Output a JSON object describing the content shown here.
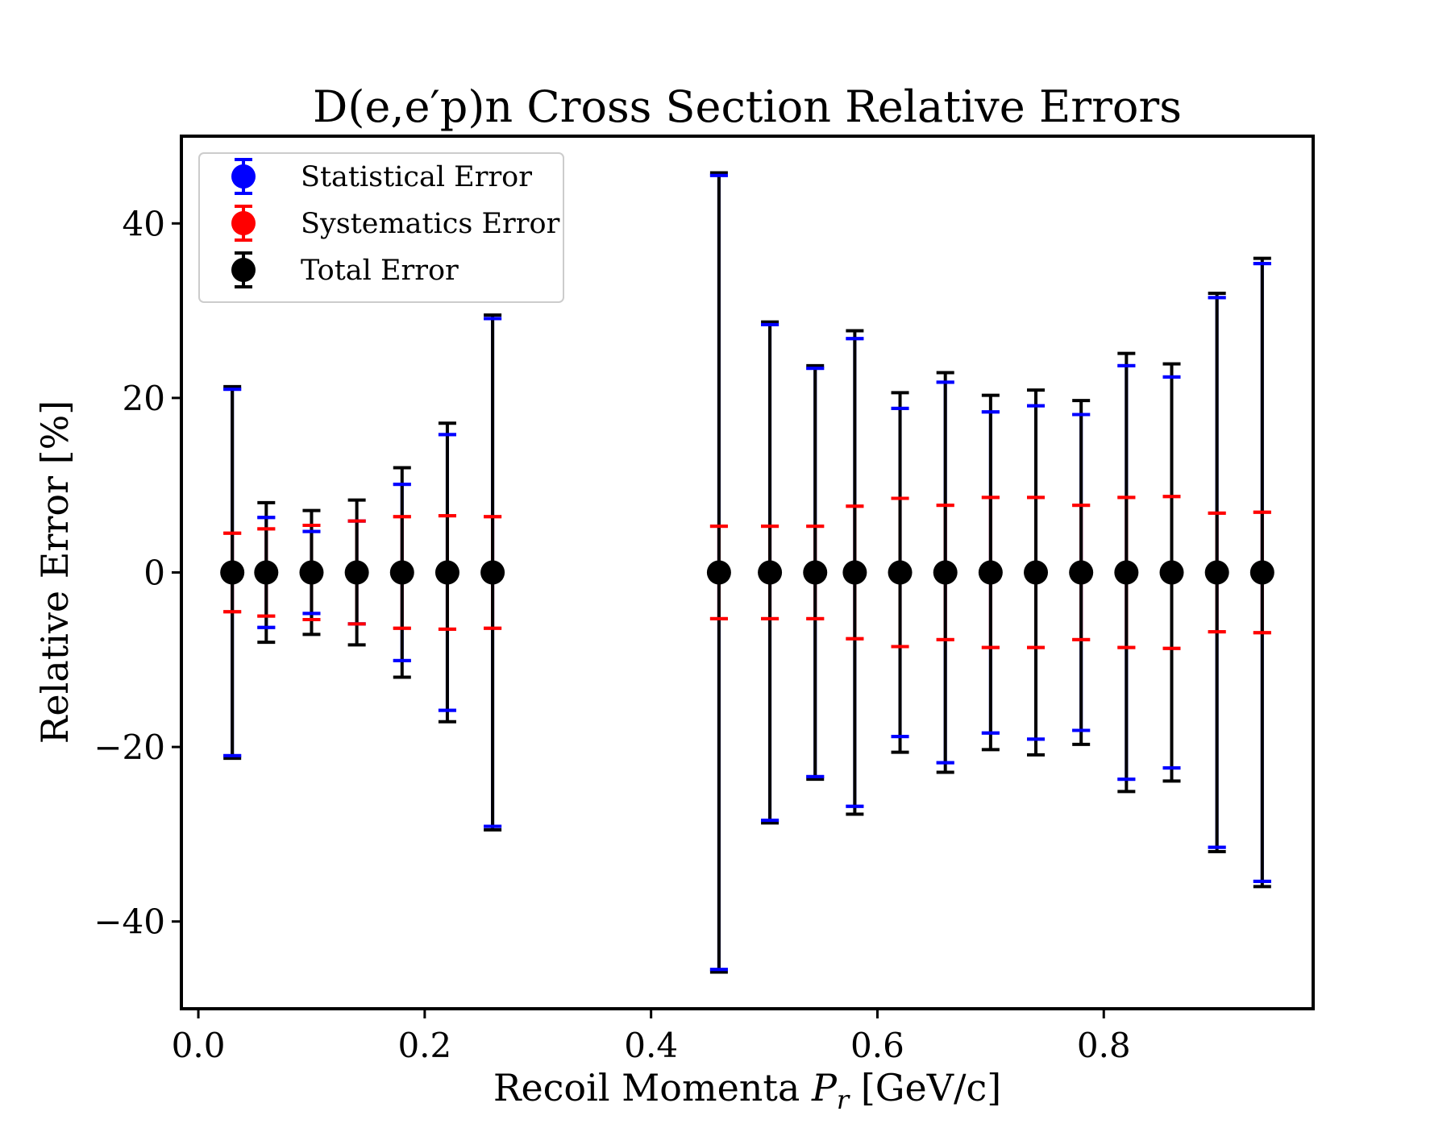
{
  "chart_data": {
    "type": "errorbar",
    "title": "D(e,e′p)n Cross Section Relative Errors",
    "xlabel": "Recoil Momenta P_r [GeV/c]",
    "xlabel_parts": {
      "before": "Recoil Momenta ",
      "var": "P",
      "sub": "r",
      "after": " [GeV/c]"
    },
    "ylabel": "Relative Error [%]",
    "xlim": [
      -0.015,
      0.985
    ],
    "ylim": [
      -50,
      50
    ],
    "xticks": [
      0.0,
      0.2,
      0.4,
      0.6,
      0.8
    ],
    "xtick_labels": [
      "0.0",
      "0.2",
      "0.4",
      "0.6",
      "0.8"
    ],
    "yticks": [
      -40,
      -20,
      0,
      20,
      40
    ],
    "ytick_labels": [
      "−40",
      "−20",
      "0",
      "20",
      "40"
    ],
    "grid": false,
    "legend": {
      "placement": "top-left",
      "entries": [
        {
          "name": "Statistical Error",
          "color": "#0000ff"
        },
        {
          "name": "Systematics Error",
          "color": "#ff0000"
        },
        {
          "name": "Total Error",
          "color": "#000000"
        }
      ]
    },
    "x": [
      0.03,
      0.06,
      0.1,
      0.14,
      0.18,
      0.22,
      0.26,
      0.46,
      0.505,
      0.545,
      0.58,
      0.62,
      0.66,
      0.7,
      0.74,
      0.78,
      0.82,
      0.86,
      0.9,
      0.94
    ],
    "y": [
      0,
      0,
      0,
      0,
      0,
      0,
      0,
      0,
      0,
      0,
      0,
      0,
      0,
      0,
      0,
      0,
      0,
      0,
      0,
      0
    ],
    "series": [
      {
        "name": "Statistical Error",
        "color": "#0000ff",
        "errors": [
          21.0,
          6.3,
          4.7,
          5.9,
          10.1,
          15.8,
          29.1,
          45.5,
          28.4,
          23.4,
          26.8,
          18.8,
          21.8,
          18.4,
          19.1,
          18.1,
          23.7,
          22.4,
          31.5,
          35.4
        ]
      },
      {
        "name": "Systematics Error",
        "color": "#ff0000",
        "errors": [
          4.5,
          5.0,
          5.4,
          5.9,
          6.4,
          6.5,
          6.4,
          5.3,
          5.3,
          5.3,
          7.6,
          8.5,
          7.7,
          8.6,
          8.6,
          7.7,
          8.6,
          8.7,
          6.8,
          6.9
        ]
      },
      {
        "name": "Total Error",
        "color": "#000000",
        "errors": [
          21.3,
          8.0,
          7.1,
          8.3,
          12.0,
          17.1,
          29.5,
          45.8,
          28.7,
          23.7,
          27.7,
          20.6,
          22.9,
          20.3,
          20.9,
          19.7,
          25.1,
          23.9,
          32.0,
          36.0
        ]
      }
    ]
  }
}
